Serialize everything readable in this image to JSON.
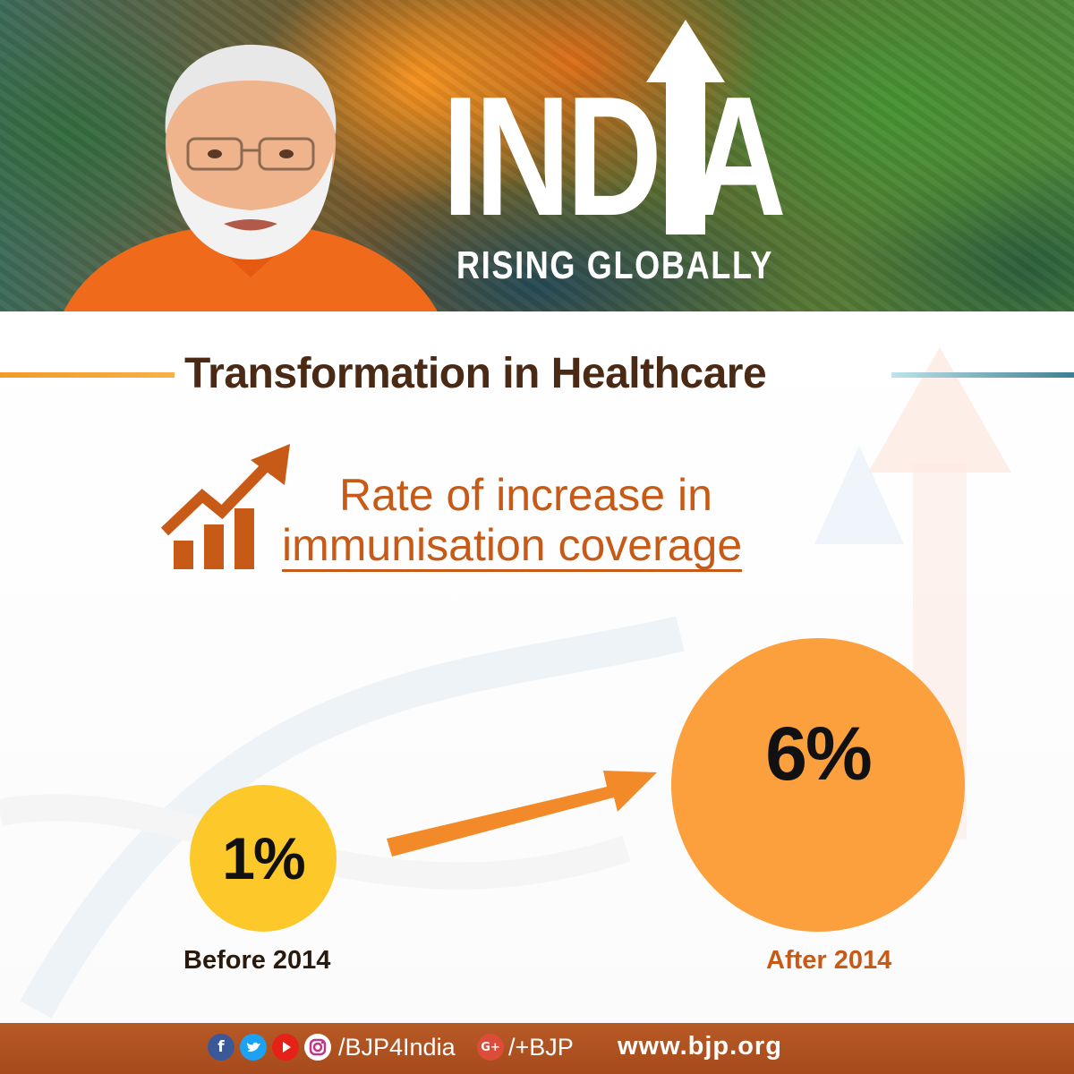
{
  "banner": {
    "wordmark": "INDIA",
    "tagline": "RISING GLOBALLY"
  },
  "heading": "Transformation in Healthcare",
  "subheading": {
    "line1": "Rate of increase in",
    "line2": "immunisation coverage"
  },
  "stats": {
    "before": {
      "value": "1%",
      "label": "Before 2014"
    },
    "after": {
      "value": "6%",
      "label": "After 2014"
    }
  },
  "footer": {
    "social_handle": "/BJP4India",
    "gplus_glyph": "G+",
    "gplus_handle": "/+BJP",
    "website": "www.bjp.org"
  },
  "colors": {
    "brown": "#4a2a14",
    "accent_orange": "#c85a17",
    "before_circle": "#fcc82a",
    "after_circle": "#fba03c",
    "footer": "#b85a26"
  },
  "icons": [
    "facebook-icon",
    "twitter-icon",
    "youtube-icon",
    "instagram-icon",
    "google-plus-icon",
    "growth-chart-icon",
    "trend-arrow-icon"
  ]
}
